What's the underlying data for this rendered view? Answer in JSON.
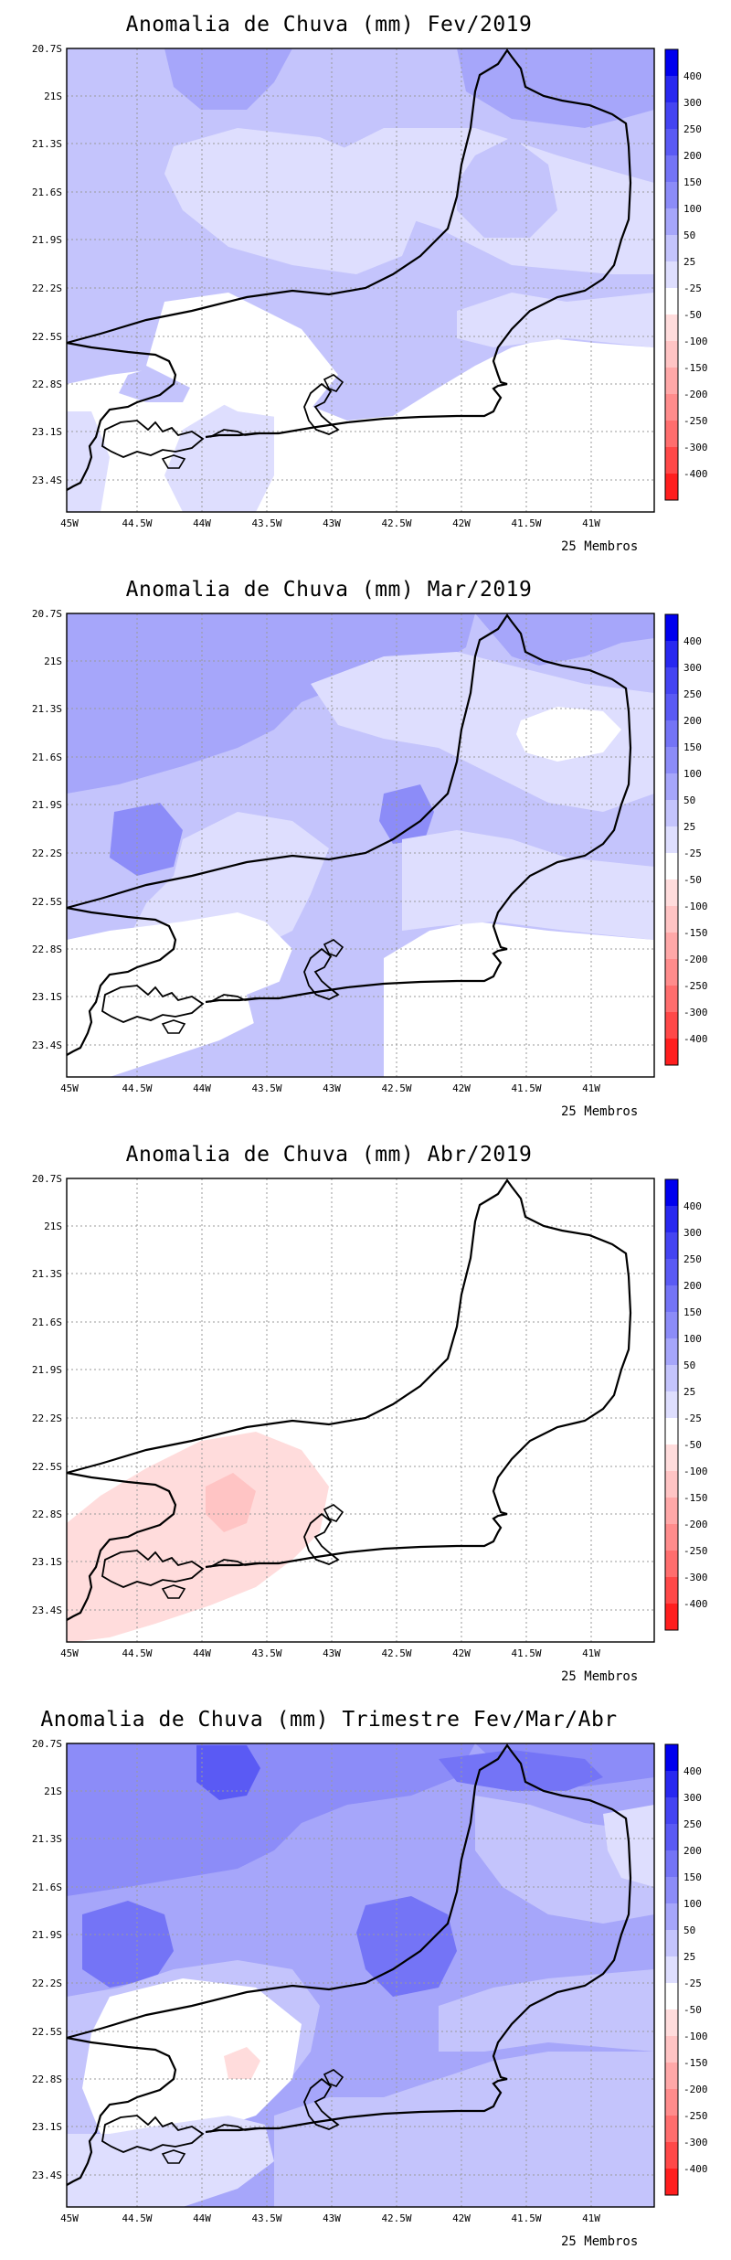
{
  "panels": [
    {
      "title": "Anomalia de Chuva (mm) Fev/2019",
      "members": "25 Membros"
    },
    {
      "title": "Anomalia de Chuva (mm) Mar/2019",
      "members": "25 Membros"
    },
    {
      "title": "Anomalia de Chuva (mm) Abr/2019",
      "members": "25 Membros"
    },
    {
      "title": "Anomalia de Chuva (mm) Trimestre Fev/Mar/Abr",
      "members": "25 Membros"
    }
  ],
  "axes": {
    "lat_labels": [
      "20.7S",
      "21S",
      "21.3S",
      "21.6S",
      "21.9S",
      "22.2S",
      "22.5S",
      "22.8S",
      "23.1S",
      "23.4S"
    ],
    "lon_labels": [
      "45W",
      "44.5W",
      "44W",
      "43.5W",
      "43W",
      "42.5W",
      "42W",
      "41.5W",
      "41W"
    ]
  },
  "legend": {
    "labels": [
      "400",
      "300",
      "250",
      "200",
      "150",
      "100",
      "50",
      "25",
      "-25",
      "-50",
      "-100",
      "-150",
      "-200",
      "-250",
      "-300",
      "-400"
    ],
    "colors": [
      "#0000ee",
      "#2828f0",
      "#4444f2",
      "#5a5af4",
      "#7474f6",
      "#8c8cf8",
      "#a6a6fa",
      "#c4c4fc",
      "#dedefe",
      "#ffffff",
      "#ffdcdc",
      "#ffc4c4",
      "#ffa8a8",
      "#ff8c8c",
      "#ff6e6e",
      "#ff4848",
      "#ff1e1e"
    ]
  }
}
